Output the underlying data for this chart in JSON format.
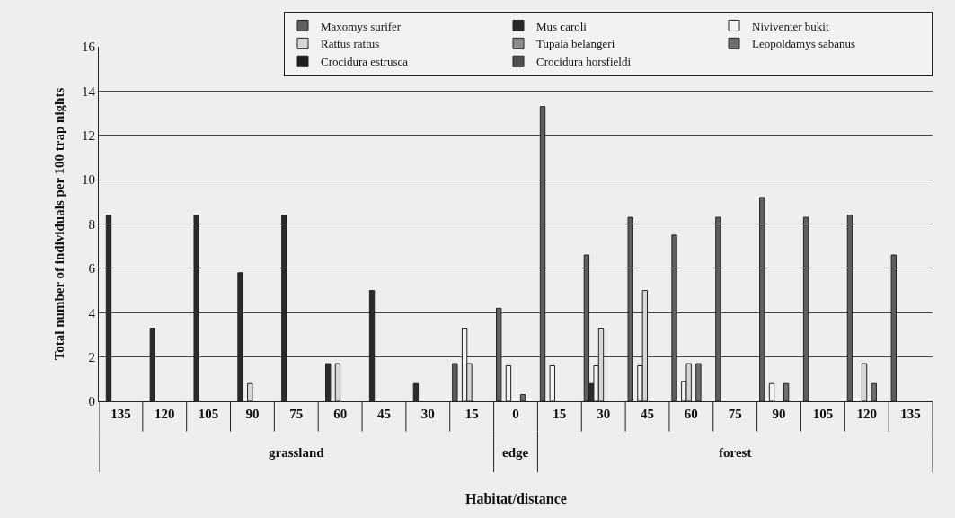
{
  "chart_data": {
    "type": "bar",
    "xlabel": "Habitat/distance",
    "ylabel": "Total number of individuals per 100 trap nights",
    "categories": [
      "135",
      "120",
      "105",
      "90",
      "75",
      "60",
      "45",
      "30",
      "15",
      "0",
      "15",
      "30",
      "45",
      "60",
      "75",
      "90",
      "105",
      "120",
      "135"
    ],
    "series": [
      {
        "name": "Maxomys surifer",
        "color": "#5e5e5e",
        "values": [
          null,
          null,
          null,
          null,
          null,
          null,
          null,
          null,
          1.7,
          4.2,
          13.3,
          6.6,
          8.3,
          7.5,
          8.3,
          9.2,
          8.3,
          8.4,
          6.6
        ]
      },
      {
        "name": "Mus caroli",
        "color": "#2a2a2a",
        "values": [
          8.4,
          3.3,
          8.4,
          5.8,
          8.4,
          1.7,
          5.0,
          0.8,
          null,
          null,
          null,
          0.8,
          null,
          null,
          null,
          null,
          null,
          null,
          null
        ]
      },
      {
        "name": "Niviventer bukit",
        "color": "#f4f4f4",
        "values": [
          null,
          null,
          null,
          null,
          null,
          null,
          null,
          null,
          3.3,
          1.6,
          1.6,
          1.6,
          1.6,
          0.9,
          null,
          0.8,
          null,
          null,
          null
        ]
      },
      {
        "name": "Rattus rattus",
        "color": "#d6d6d6",
        "values": [
          null,
          null,
          null,
          0.8,
          null,
          1.7,
          null,
          null,
          1.7,
          null,
          null,
          3.3,
          5.0,
          1.7,
          null,
          null,
          null,
          1.7,
          null
        ]
      },
      {
        "name": "Tupaia belangeri",
        "color": "#8c8c8c",
        "values": [
          null,
          null,
          null,
          null,
          null,
          null,
          null,
          null,
          null,
          null,
          null,
          null,
          null,
          null,
          null,
          null,
          null,
          null,
          null
        ]
      },
      {
        "name": "Leopoldamys sabanus",
        "color": "#6e6e6e",
        "values": [
          null,
          null,
          null,
          null,
          null,
          null,
          null,
          null,
          null,
          0.3,
          null,
          null,
          null,
          1.7,
          null,
          0.8,
          null,
          0.8,
          null
        ]
      },
      {
        "name": "Crocidura estrusca",
        "color": "#1e1e1e",
        "values": [
          null,
          null,
          null,
          null,
          null,
          null,
          null,
          null,
          null,
          null,
          null,
          null,
          null,
          null,
          null,
          null,
          null,
          null,
          null
        ]
      },
      {
        "name": "Crocidura horsfieldi",
        "color": "#505050",
        "values": [
          null,
          null,
          null,
          null,
          null,
          null,
          null,
          null,
          null,
          null,
          null,
          null,
          null,
          null,
          null,
          null,
          null,
          null,
          null
        ]
      }
    ],
    "annotations": [
      "grassland",
      "edge",
      "forest"
    ],
    "ylim": [
      0,
      16
    ],
    "yticks": [
      0,
      2,
      4,
      6,
      8,
      10,
      12,
      14,
      16
    ],
    "grid": "y",
    "legend": "top right"
  }
}
